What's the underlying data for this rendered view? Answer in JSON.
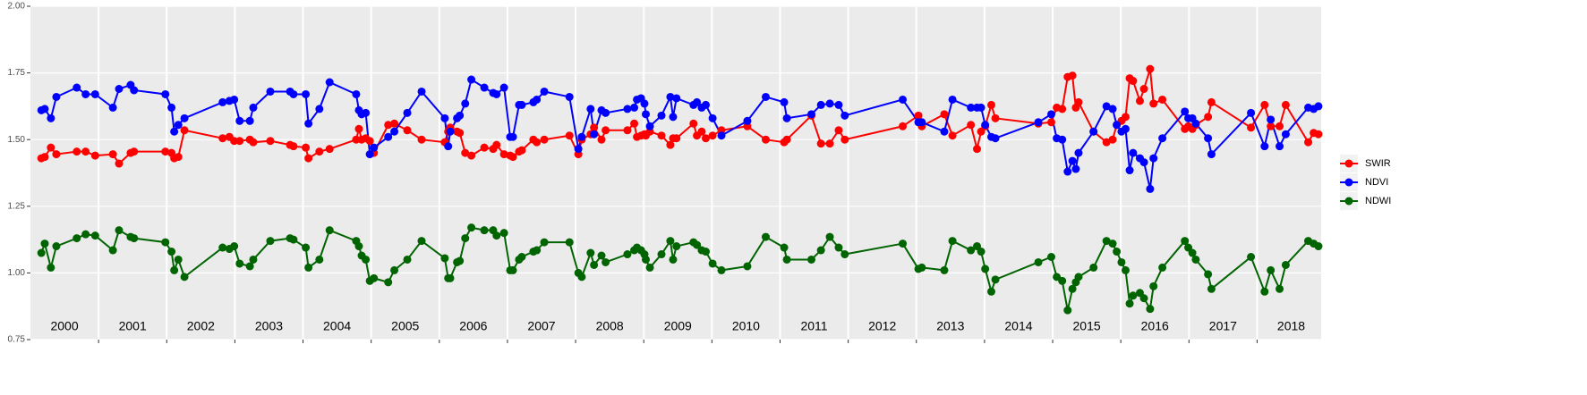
{
  "chart_data": {
    "type": "line",
    "x": [
      2000.16,
      2000.21,
      2000.3,
      2000.38,
      2000.68,
      2000.81,
      2000.95,
      2001.21,
      2001.3,
      2001.47,
      2001.52,
      2001.98,
      2002.07,
      2002.11,
      2002.17,
      2002.26,
      2002.82,
      2002.92,
      2002.99,
      2003.07,
      2003.22,
      2003.27,
      2003.52,
      2003.81,
      2003.86,
      2004.04,
      2004.08,
      2004.24,
      2004.39,
      2004.78,
      2004.82,
      2004.86,
      2004.92,
      2004.98,
      2005.04,
      2005.25,
      2005.34,
      2005.53,
      2005.74,
      2006.08,
      2006.13,
      2006.16,
      2006.26,
      2006.3,
      2006.38,
      2006.47,
      2006.66,
      2006.79,
      2006.84,
      2006.95,
      2007.04,
      2007.08,
      2007.17,
      2007.21,
      2007.38,
      2007.43,
      2007.54,
      2007.91,
      2008.04,
      2008.09,
      2008.22,
      2008.27,
      2008.38,
      2008.44,
      2008.76,
      2008.86,
      2008.9,
      2008.96,
      2009.01,
      2009.03,
      2009.09,
      2009.26,
      2009.39,
      2009.43,
      2009.48,
      2009.73,
      2009.78,
      2009.85,
      2009.91,
      2010.01,
      2010.14,
      2010.52,
      2010.79,
      2011.06,
      2011.1,
      2011.46,
      2011.6,
      2011.73,
      2011.86,
      2011.95,
      2012.8,
      2013.03,
      2013.08,
      2013.41,
      2013.53,
      2013.8,
      2013.89,
      2013.95,
      2014.01,
      2014.1,
      2014.16,
      2014.79,
      2014.98,
      2015.06,
      2015.14,
      2015.22,
      2015.29,
      2015.34,
      2015.38,
      2015.6,
      2015.79,
      2015.88,
      2015.94,
      2016.01,
      2016.07,
      2016.13,
      2016.18,
      2016.28,
      2016.34,
      2016.43,
      2016.48,
      2016.61,
      2016.94,
      2016.99,
      2017.05,
      2017.1,
      2017.28,
      2017.33,
      2017.91,
      2018.11,
      2018.2,
      2018.33,
      2018.42,
      2018.75,
      2018.83,
      2018.9
    ],
    "series": [
      {
        "name": "SWIR",
        "color": "#ff0000",
        "values": [
          1.43,
          1.435,
          1.47,
          1.445,
          1.455,
          1.455,
          1.44,
          1.445,
          1.41,
          1.45,
          1.455,
          1.455,
          1.45,
          1.43,
          1.435,
          1.535,
          1.505,
          1.51,
          1.495,
          1.495,
          1.5,
          1.49,
          1.495,
          1.48,
          1.475,
          1.47,
          1.43,
          1.455,
          1.465,
          1.5,
          1.54,
          1.5,
          1.505,
          1.495,
          1.45,
          1.555,
          1.56,
          1.535,
          1.5,
          1.49,
          1.53,
          1.545,
          1.53,
          1.525,
          1.45,
          1.44,
          1.47,
          1.465,
          1.48,
          1.445,
          1.44,
          1.435,
          1.455,
          1.46,
          1.5,
          1.49,
          1.5,
          1.515,
          1.445,
          1.5,
          1.52,
          1.545,
          1.5,
          1.535,
          1.535,
          1.56,
          1.51,
          1.515,
          1.52,
          1.515,
          1.53,
          1.515,
          1.48,
          1.505,
          1.505,
          1.56,
          1.515,
          1.53,
          1.505,
          1.515,
          1.535,
          1.55,
          1.5,
          1.49,
          1.5,
          1.59,
          1.485,
          1.485,
          1.535,
          1.5,
          1.55,
          1.59,
          1.55,
          1.595,
          1.515,
          1.555,
          1.465,
          1.53,
          1.55,
          1.63,
          1.58,
          1.56,
          1.565,
          1.62,
          1.615,
          1.735,
          1.74,
          1.62,
          1.64,
          1.53,
          1.49,
          1.5,
          1.555,
          1.57,
          1.585,
          1.73,
          1.72,
          1.645,
          1.69,
          1.765,
          1.635,
          1.65,
          1.54,
          1.55,
          1.54,
          1.555,
          1.585,
          1.64,
          1.545,
          1.63,
          1.55,
          1.55,
          1.63,
          1.49,
          1.525,
          1.52
        ]
      },
      {
        "name": "NDVI",
        "color": "#0000ff",
        "values": [
          1.61,
          1.615,
          1.58,
          1.66,
          1.695,
          1.67,
          1.67,
          1.62,
          1.69,
          1.705,
          1.685,
          1.67,
          1.62,
          1.53,
          1.555,
          1.58,
          1.64,
          1.645,
          1.65,
          1.57,
          1.57,
          1.62,
          1.68,
          1.68,
          1.67,
          1.67,
          1.56,
          1.615,
          1.715,
          1.67,
          1.61,
          1.595,
          1.6,
          1.445,
          1.47,
          1.51,
          1.53,
          1.6,
          1.68,
          1.58,
          1.475,
          1.53,
          1.58,
          1.59,
          1.635,
          1.725,
          1.695,
          1.675,
          1.67,
          1.695,
          1.51,
          1.51,
          1.63,
          1.63,
          1.64,
          1.65,
          1.68,
          1.66,
          1.465,
          1.51,
          1.615,
          1.52,
          1.61,
          1.6,
          1.615,
          1.62,
          1.65,
          1.655,
          1.635,
          1.595,
          1.55,
          1.59,
          1.66,
          1.585,
          1.655,
          1.63,
          1.64,
          1.62,
          1.63,
          1.58,
          1.515,
          1.57,
          1.66,
          1.64,
          1.58,
          1.595,
          1.63,
          1.635,
          1.63,
          1.59,
          1.65,
          1.565,
          1.565,
          1.53,
          1.65,
          1.62,
          1.62,
          1.62,
          1.555,
          1.51,
          1.505,
          1.565,
          1.595,
          1.505,
          1.5,
          1.38,
          1.42,
          1.39,
          1.45,
          1.53,
          1.625,
          1.615,
          1.555,
          1.53,
          1.54,
          1.385,
          1.45,
          1.43,
          1.415,
          1.315,
          1.43,
          1.505,
          1.605,
          1.58,
          1.58,
          1.56,
          1.505,
          1.445,
          1.6,
          1.475,
          1.575,
          1.475,
          1.52,
          1.62,
          1.615,
          1.625
        ]
      },
      {
        "name": "NDWI",
        "color": "#006400",
        "values": [
          1.075,
          1.11,
          1.02,
          1.1,
          1.13,
          1.145,
          1.14,
          1.085,
          1.16,
          1.135,
          1.13,
          1.115,
          1.08,
          1.01,
          1.05,
          0.985,
          1.095,
          1.09,
          1.1,
          1.035,
          1.025,
          1.05,
          1.12,
          1.13,
          1.125,
          1.095,
          1.02,
          1.05,
          1.16,
          1.12,
          1.1,
          1.065,
          1.05,
          0.97,
          0.98,
          0.965,
          1.01,
          1.05,
          1.12,
          1.055,
          0.98,
          0.98,
          1.04,
          1.045,
          1.13,
          1.17,
          1.16,
          1.16,
          1.14,
          1.15,
          1.01,
          1.01,
          1.05,
          1.06,
          1.08,
          1.085,
          1.115,
          1.115,
          1.0,
          0.985,
          1.075,
          1.03,
          1.065,
          1.04,
          1.07,
          1.085,
          1.095,
          1.085,
          1.07,
          1.05,
          1.02,
          1.07,
          1.12,
          1.05,
          1.1,
          1.115,
          1.105,
          1.085,
          1.08,
          1.035,
          1.01,
          1.025,
          1.135,
          1.095,
          1.05,
          1.05,
          1.085,
          1.135,
          1.095,
          1.07,
          1.11,
          1.015,
          1.02,
          1.01,
          1.12,
          1.085,
          1.1,
          1.08,
          1.015,
          0.93,
          0.975,
          1.04,
          1.06,
          0.985,
          0.97,
          0.86,
          0.94,
          0.965,
          0.985,
          1.02,
          1.12,
          1.11,
          1.08,
          1.04,
          1.01,
          0.885,
          0.915,
          0.925,
          0.905,
          0.865,
          0.95,
          1.02,
          1.12,
          1.095,
          1.075,
          1.05,
          0.995,
          0.94,
          1.06,
          0.93,
          1.01,
          0.94,
          1.03,
          1.12,
          1.11,
          1.1
        ]
      }
    ],
    "xlim": [
      2000.0,
      2018.94
    ],
    "xticks": [
      2001,
      2002,
      2003,
      2004,
      2005,
      2006,
      2007,
      2008,
      2009,
      2010,
      2011,
      2012,
      2013,
      2014,
      2015,
      2016,
      2017,
      2018
    ],
    "year_labels": [
      {
        "value": 2000.5,
        "label": "2000"
      },
      {
        "value": 2001.5,
        "label": "2001"
      },
      {
        "value": 2002.5,
        "label": "2002"
      },
      {
        "value": 2003.5,
        "label": "2003"
      },
      {
        "value": 2004.5,
        "label": "2004"
      },
      {
        "value": 2005.5,
        "label": "2005"
      },
      {
        "value": 2006.5,
        "label": "2006"
      },
      {
        "value": 2007.5,
        "label": "2007"
      },
      {
        "value": 2008.5,
        "label": "2008"
      },
      {
        "value": 2009.5,
        "label": "2009"
      },
      {
        "value": 2010.5,
        "label": "2010"
      },
      {
        "value": 2011.5,
        "label": "2011"
      },
      {
        "value": 2012.5,
        "label": "2012"
      },
      {
        "value": 2013.5,
        "label": "2013"
      },
      {
        "value": 2014.5,
        "label": "2014"
      },
      {
        "value": 2015.5,
        "label": "2015"
      },
      {
        "value": 2016.5,
        "label": "2016"
      },
      {
        "value": 2017.5,
        "label": "2017"
      },
      {
        "value": 2018.5,
        "label": "2018"
      }
    ],
    "ylim": [
      0.75,
      2.0
    ],
    "yticks": [
      {
        "value": 0.75,
        "label": "0.75"
      },
      {
        "value": 1.0,
        "label": "1.00"
      },
      {
        "value": 1.25,
        "label": "1.25"
      },
      {
        "value": 1.5,
        "label": "1.50"
      },
      {
        "value": 1.75,
        "label": "1.75"
      },
      {
        "value": 2.0,
        "label": "2.00"
      }
    ],
    "grid": true,
    "legend": "right"
  }
}
